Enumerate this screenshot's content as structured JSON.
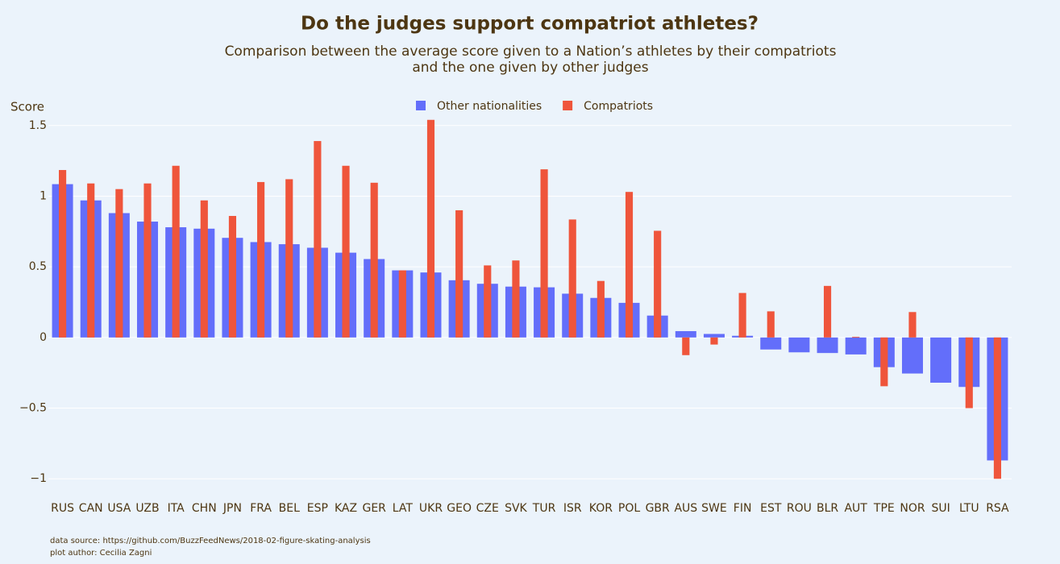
{
  "chart_data": {
    "type": "bar",
    "mode": "overlay",
    "title": "Do the judges support compatriot athletes?",
    "subtitle": [
      "Comparison between the average score given to a Nation’s athletes by their compatriots",
      "and the one given by other judges"
    ],
    "y_label": "Score",
    "categories": [
      "RUS",
      "CAN",
      "USA",
      "UZB",
      "ITA",
      "CHN",
      "JPN",
      "FRA",
      "BEL",
      "ESP",
      "KAZ",
      "GER",
      "LAT",
      "UKR",
      "GEO",
      "CZE",
      "SVK",
      "TUR",
      "ISR",
      "KOR",
      "POL",
      "GBR",
      "AUS",
      "SWE",
      "FIN",
      "EST",
      "ROU",
      "BLR",
      "AUT",
      "TPE",
      "NOR",
      "SUI",
      "LTU",
      "RSA"
    ],
    "series": [
      {
        "name": "Other nationalities",
        "color": "#636efa",
        "values": [
          1.085,
          0.97,
          0.88,
          0.82,
          0.78,
          0.77,
          0.705,
          0.675,
          0.66,
          0.635,
          0.6,
          0.555,
          0.475,
          0.46,
          0.405,
          0.38,
          0.36,
          0.355,
          0.31,
          0.28,
          0.245,
          0.155,
          0.045,
          0.025,
          0.012,
          -0.085,
          -0.105,
          -0.11,
          -0.12,
          -0.21,
          -0.255,
          -0.32,
          -0.35,
          -0.87
        ]
      },
      {
        "name": "Compatriots",
        "color": "#ef553b",
        "values": [
          1.185,
          1.09,
          1.05,
          1.09,
          1.215,
          0.97,
          0.86,
          1.1,
          1.12,
          1.39,
          1.215,
          1.095,
          0.475,
          1.54,
          0.9,
          0.51,
          0.545,
          1.19,
          0.835,
          0.4,
          1.03,
          0.755,
          -0.125,
          -0.05,
          0.315,
          0.185,
          null,
          0.365,
          0.005,
          -0.345,
          0.18,
          null,
          -0.5,
          -1.0
        ]
      }
    ],
    "ylim": [
      -1.01,
      1.55
    ],
    "yticks": [
      {
        "value": -1,
        "label": "−1"
      },
      {
        "value": -0.5,
        "label": "−0.5"
      },
      0,
      0.5,
      1,
      1.5
    ],
    "grid": true,
    "legend": "top",
    "notes": [
      "data source: https://github.com/BuzzFeedNews/2018-02-figure-skating-analysis",
      "plot author: Cecilia Zagni"
    ]
  }
}
